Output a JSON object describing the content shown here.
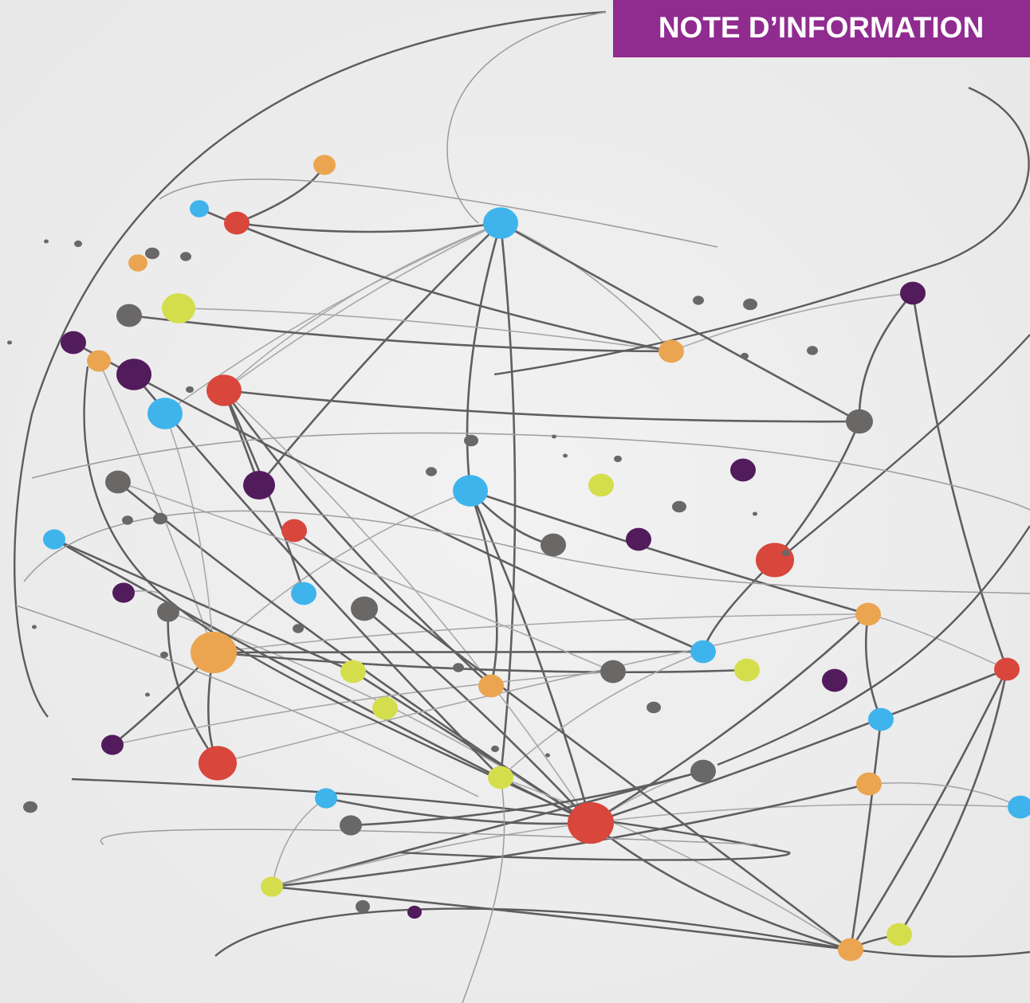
{
  "header": {
    "label": "NOTE D’INFORMATION"
  }
}
